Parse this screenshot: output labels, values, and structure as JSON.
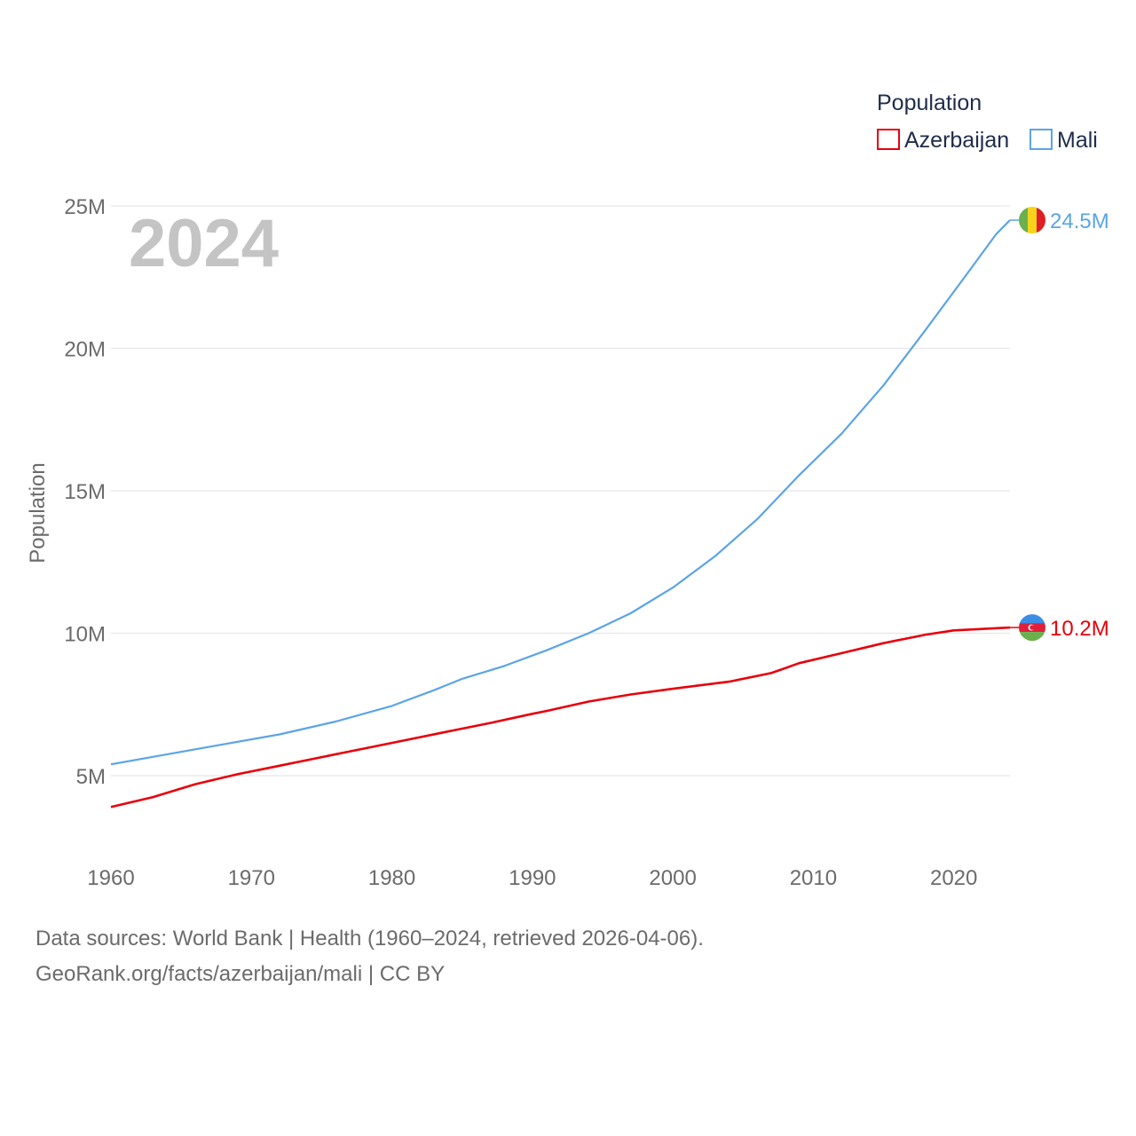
{
  "chart_data": {
    "type": "line",
    "title": "Population",
    "ylabel": "Population",
    "xlabel": "",
    "year_label": "2024",
    "xlim": [
      1960,
      2024
    ],
    "ylim": [
      2500000,
      25800000
    ],
    "x_ticks": [
      1960,
      1970,
      1980,
      1990,
      2000,
      2010,
      2020
    ],
    "y_ticks": [
      {
        "value": 5000000,
        "label": "5M"
      },
      {
        "value": 10000000,
        "label": "10M"
      },
      {
        "value": 15000000,
        "label": "15M"
      },
      {
        "value": 20000000,
        "label": "20M"
      },
      {
        "value": 25000000,
        "label": "25M"
      }
    ],
    "grid": true,
    "legend": {
      "title": "Population",
      "position": "top-right"
    },
    "series": [
      {
        "name": "Azerbaijan",
        "color": "#e8000b",
        "end_label": "10.2M",
        "flag": "azerbaijan-flag",
        "points": [
          [
            1960,
            3900000
          ],
          [
            1963,
            4250000
          ],
          [
            1966,
            4700000
          ],
          [
            1969,
            5050000
          ],
          [
            1972,
            5350000
          ],
          [
            1975,
            5650000
          ],
          [
            1978,
            5950000
          ],
          [
            1981,
            6250000
          ],
          [
            1984,
            6550000
          ],
          [
            1987,
            6850000
          ],
          [
            1990,
            7170000
          ],
          [
            1991,
            7270000
          ],
          [
            1994,
            7600000
          ],
          [
            1997,
            7850000
          ],
          [
            2000,
            8050000
          ],
          [
            2004,
            8300000
          ],
          [
            2007,
            8600000
          ],
          [
            2009,
            8950000
          ],
          [
            2012,
            9300000
          ],
          [
            2015,
            9650000
          ],
          [
            2018,
            9950000
          ],
          [
            2020,
            10100000
          ],
          [
            2022,
            10150000
          ],
          [
            2024,
            10200000
          ]
        ]
      },
      {
        "name": "Mali",
        "color": "#5ba4e6",
        "end_label": "24.5M",
        "flag": "mali-flag",
        "points": [
          [
            1960,
            5400000
          ],
          [
            1964,
            5750000
          ],
          [
            1968,
            6100000
          ],
          [
            1972,
            6450000
          ],
          [
            1976,
            6900000
          ],
          [
            1980,
            7450000
          ],
          [
            1983,
            8000000
          ],
          [
            1985,
            8400000
          ],
          [
            1988,
            8850000
          ],
          [
            1991,
            9400000
          ],
          [
            1994,
            10000000
          ],
          [
            1997,
            10700000
          ],
          [
            2000,
            11600000
          ],
          [
            2003,
            12700000
          ],
          [
            2006,
            14000000
          ],
          [
            2009,
            15550000
          ],
          [
            2012,
            17000000
          ],
          [
            2015,
            18700000
          ],
          [
            2018,
            20650000
          ],
          [
            2021,
            22650000
          ],
          [
            2023,
            24000000
          ],
          [
            2024,
            24500000
          ]
        ]
      }
    ]
  },
  "footer": {
    "line1": "Data sources: World Bank | Health (1960–2024, retrieved 2026-04-06).",
    "line2": "GeoRank.org/facts/azerbaijan/mali | CC BY"
  }
}
